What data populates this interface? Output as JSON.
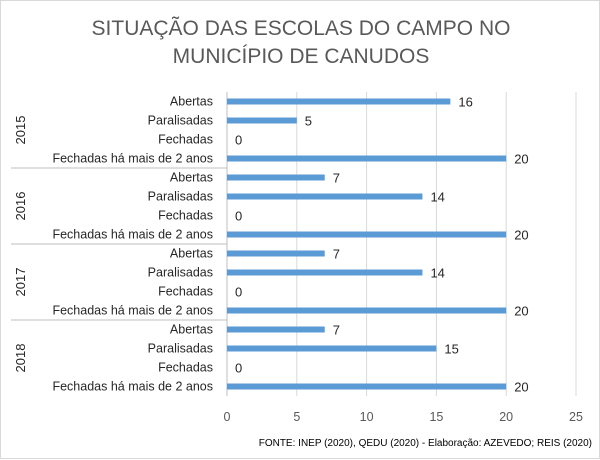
{
  "chart_data": {
    "type": "bar",
    "orientation": "horizontal",
    "title_lines": [
      "SITUAÇÃO DAS ESCOLAS DO CAMPO NO",
      "MUNICÍPIO DE CANUDOS"
    ],
    "groups": [
      {
        "year": "2015",
        "categories": [
          "Abertas",
          "Paralisadas",
          "Fechadas",
          "Fechadas há mais de 2 anos"
        ],
        "values": [
          16,
          5,
          0,
          20
        ]
      },
      {
        "year": "2016",
        "categories": [
          "Abertas",
          "Paralisadas",
          "Fechadas",
          "Fechadas há mais de 2 anos"
        ],
        "values": [
          7,
          14,
          0,
          20
        ]
      },
      {
        "year": "2017",
        "categories": [
          "Abertas",
          "Paralisadas",
          "Fechadas",
          "Fechadas há mais de 2 anos"
        ],
        "values": [
          7,
          14,
          0,
          20
        ]
      },
      {
        "year": "2018",
        "categories": [
          "Abertas",
          "Paralisadas",
          "Fechadas",
          "Fechadas há mais de 2 anos"
        ],
        "values": [
          7,
          15,
          0,
          20
        ]
      }
    ],
    "xlim": [
      0,
      25
    ],
    "xticks": [
      0,
      5,
      10,
      15,
      20,
      25
    ],
    "grid": "vertical",
    "bar_color": "#5b9bd5",
    "source": "FONTE: INEP (2020),  QEDU (2020) - Elaboração: AZEVEDO; REIS (2020)"
  }
}
